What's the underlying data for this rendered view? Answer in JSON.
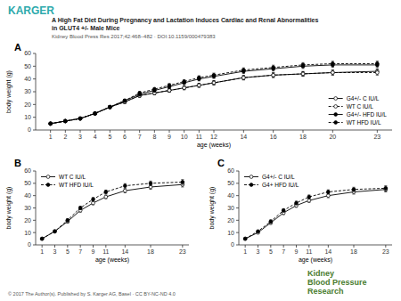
{
  "title": [
    "A High Fat Diet During Pregnancy and Lactation Induces Cardiac and Renal Abnormalities",
    "in GLUT4 +/- Male Mice"
  ],
  "subtitle": "Kidney Blood Press Res 2017;42:468–482 · DOI:10.1159/000479383",
  "annotations": [
    {
      "text": "KARGER",
      "color": "#2EAAAC"
    },
    {
      "text": "© 2017 The Author(s). Published by S. Karger AG, Basel · CC BY-NC-ND 4.0",
      "color": "#555555"
    },
    {
      "text": "Kidney",
      "color": "#4A7C2F"
    },
    {
      "text": "Blood Pressure",
      "color": "#4A7C2F"
    },
    {
      "text": "Research",
      "color": "#4A7C2F"
    }
  ],
  "chart_data": [
    {
      "type": "line",
      "title": "A",
      "x_label": "age (weeks)",
      "y_label": "body weight (g)",
      "x": [
        1,
        2,
        3,
        4,
        5,
        6,
        7,
        8,
        9,
        10,
        11,
        12,
        14,
        16,
        18,
        20,
        23
      ],
      "xlim": [
        0,
        24
      ],
      "xticks": [
        1,
        2,
        3,
        4,
        5,
        6,
        7,
        8,
        9,
        10,
        11,
        12,
        14,
        16,
        18,
        20,
        23
      ],
      "ylim": [
        0,
        60
      ],
      "yticks": [
        0,
        10,
        20,
        30,
        40,
        50,
        60
      ],
      "grid": false,
      "legend": "lower right",
      "series": [
        {
          "name": "G4+/- C IU/L",
          "color": "#000000",
          "marker": "open-circle",
          "line_style": "solid",
          "values": [
            5,
            7,
            9,
            13,
            18,
            22,
            27,
            29,
            31,
            33,
            35,
            37,
            41,
            43,
            44,
            45,
            46
          ],
          "errors": [
            0.4,
            0.5,
            0.7,
            0.9,
            1.0,
            1.1,
            1.2,
            1.3,
            1.4,
            1.4,
            1.5,
            1.6,
            1.7,
            1.8,
            1.8,
            1.9,
            2.0
          ]
        },
        {
          "name": "WT C IU/L",
          "color": "#000000",
          "marker": "open-circle",
          "line_style": "dashed",
          "values": [
            5,
            7,
            9,
            13,
            18,
            22,
            27,
            29,
            31,
            33,
            35,
            37,
            41,
            43,
            44,
            45,
            45
          ],
          "errors": [
            0.4,
            0.5,
            0.7,
            0.9,
            1.0,
            1.1,
            1.2,
            1.3,
            1.4,
            1.4,
            1.5,
            1.6,
            1.7,
            1.8,
            1.8,
            1.9,
            2.0
          ]
        },
        {
          "name": "G4+/- HFD IU/L",
          "color": "#000000",
          "marker": "filled-circle",
          "line_style": "solid",
          "values": [
            5,
            7,
            9,
            13,
            18,
            23,
            28,
            31,
            34,
            37,
            40,
            42,
            46,
            48,
            50,
            51,
            51
          ],
          "errors": [
            0.4,
            0.5,
            0.7,
            0.9,
            1.0,
            1.1,
            1.2,
            1.3,
            1.4,
            1.4,
            1.5,
            1.6,
            1.7,
            1.8,
            1.8,
            1.9,
            2.0
          ]
        },
        {
          "name": "WT HFD IU/L",
          "color": "#000000",
          "marker": "filled-circle",
          "line_style": "dashed",
          "values": [
            5,
            7,
            9,
            13,
            18,
            23,
            29,
            32,
            35,
            38,
            41,
            43,
            47,
            49,
            51,
            52,
            52
          ],
          "errors": [
            0.4,
            0.5,
            0.7,
            0.9,
            1.0,
            1.1,
            1.2,
            1.3,
            1.4,
            1.4,
            1.5,
            1.6,
            1.7,
            1.8,
            1.8,
            1.9,
            2.0
          ]
        }
      ]
    },
    {
      "type": "line",
      "title": "B",
      "x_label": "age (weeks)",
      "y_label": "body weight (g)",
      "x": [
        1,
        3,
        5,
        7,
        9,
        11,
        14,
        18,
        23
      ],
      "xlim": [
        0,
        24
      ],
      "xticks": [
        1,
        3,
        5,
        7,
        9,
        11,
        14,
        18,
        23
      ],
      "ylim": [
        0,
        60
      ],
      "yticks": [
        0,
        10,
        20,
        30,
        40,
        50,
        60
      ],
      "grid": false,
      "legend": "upper left",
      "series": [
        {
          "name": "WT C IU/L",
          "color": "#000000",
          "marker": "open-circle",
          "line_style": "solid",
          "values": [
            5,
            11,
            19,
            28,
            34,
            39,
            44,
            47,
            49
          ],
          "errors": [
            0.4,
            0.9,
            1.3,
            1.4,
            1.5,
            1.5,
            1.7,
            1.8,
            2.0
          ]
        },
        {
          "name": "WT HFD IU/L",
          "color": "#000000",
          "marker": "filled-circle",
          "line_style": "dashed",
          "values": [
            5,
            11,
            20,
            30,
            37,
            43,
            48,
            50,
            51
          ],
          "errors": [
            0.4,
            0.9,
            1.3,
            1.4,
            1.5,
            1.5,
            1.7,
            1.8,
            2.0
          ]
        }
      ]
    },
    {
      "type": "line",
      "title": "C",
      "x_label": "age (weeks)",
      "y_label": "body weight (g)",
      "x": [
        1,
        3,
        5,
        7,
        9,
        11,
        14,
        18,
        23
      ],
      "xlim": [
        0,
        24
      ],
      "xticks": [
        1,
        3,
        5,
        7,
        9,
        11,
        14,
        18,
        23
      ],
      "ylim": [
        0,
        60
      ],
      "yticks": [
        0,
        10,
        20,
        30,
        40,
        50,
        60
      ],
      "grid": false,
      "legend": "upper left",
      "series": [
        {
          "name": "G4+/- C IU/L",
          "color": "#000000",
          "marker": "open-circle",
          "line_style": "solid",
          "values": [
            5,
            10,
            18,
            26,
            32,
            36,
            40,
            43,
            45
          ],
          "errors": [
            0.4,
            0.9,
            1.3,
            1.4,
            1.5,
            1.5,
            1.7,
            1.8,
            2.0
          ]
        },
        {
          "name": "G4+ HFD IU/L",
          "color": "#000000",
          "marker": "filled-circle",
          "line_style": "dashed",
          "values": [
            5,
            11,
            19,
            28,
            34,
            39,
            43,
            45,
            46
          ],
          "errors": [
            0.4,
            0.9,
            1.3,
            1.4,
            1.5,
            1.5,
            1.7,
            1.8,
            2.0
          ]
        }
      ]
    }
  ]
}
